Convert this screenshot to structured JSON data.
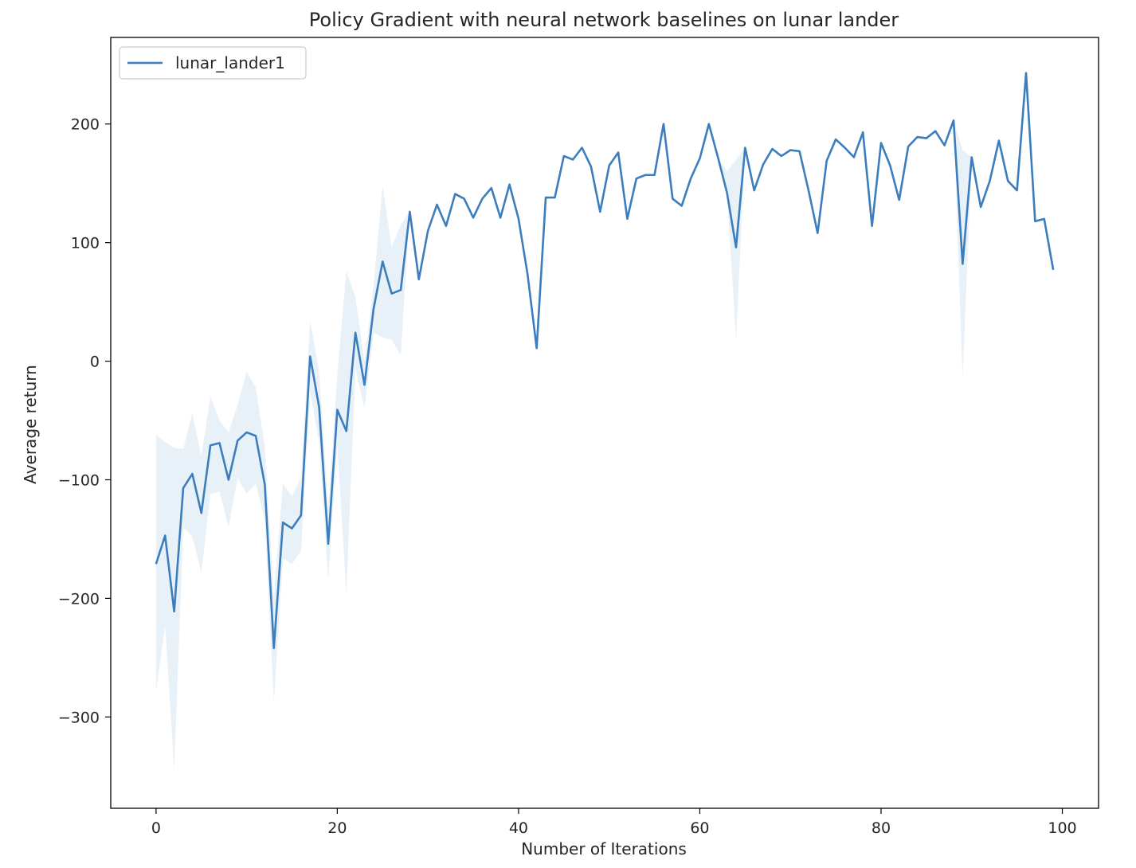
{
  "chart_data": {
    "type": "line",
    "title": "Policy Gradient with neural network baselines on lunar lander",
    "xlabel": "Number of Iterations",
    "ylabel": "Average return",
    "xlim": [
      -5,
      104
    ],
    "ylim": [
      -377,
      273
    ],
    "xticks": [
      0,
      20,
      40,
      60,
      80,
      100
    ],
    "yticks": [
      -300,
      -200,
      -100,
      0,
      100,
      200
    ],
    "xtick_labels": [
      "0",
      "20",
      "40",
      "60",
      "80",
      "100"
    ],
    "ytick_labels": [
      "−300",
      "−200",
      "−100",
      "0",
      "100",
      "200"
    ],
    "grid": false,
    "legend_position": "top-left",
    "series": [
      {
        "name": "lunar_lander1",
        "color": "#3b7dbd",
        "band_color": "#e8f0f8",
        "x": [
          0,
          1,
          2,
          3,
          4,
          5,
          6,
          7,
          8,
          9,
          10,
          11,
          12,
          13,
          14,
          15,
          16,
          17,
          18,
          19,
          20,
          21,
          22,
          23,
          24,
          25,
          26,
          27,
          28,
          29,
          30,
          31,
          32,
          33,
          34,
          35,
          36,
          37,
          38,
          39,
          40,
          41,
          42,
          43,
          44,
          45,
          46,
          47,
          48,
          49,
          50,
          51,
          52,
          53,
          54,
          55,
          56,
          57,
          58,
          59,
          60,
          61,
          62,
          63,
          64,
          65,
          66,
          67,
          68,
          69,
          70,
          71,
          72,
          73,
          74,
          75,
          76,
          77,
          78,
          79,
          80,
          81,
          82,
          83,
          84,
          85,
          86,
          87,
          88,
          89,
          90,
          91,
          92,
          93,
          94,
          95,
          96,
          97,
          98,
          99
        ],
        "y": [
          -171,
          -147,
          -211,
          -107,
          -95,
          -128,
          -71,
          -69,
          -100,
          -67,
          -60,
          -63,
          -104,
          -242,
          -136,
          -141,
          -130,
          4,
          -39,
          -154,
          -41,
          -59,
          24,
          -20,
          44,
          84,
          57,
          60,
          126,
          69,
          110,
          132,
          114,
          141,
          137,
          121,
          137,
          146,
          121,
          149,
          120,
          73,
          11,
          138,
          138,
          173,
          170,
          180,
          164,
          126,
          165,
          176,
          120,
          154,
          157,
          157,
          200,
          137,
          131,
          154,
          171,
          200,
          172,
          142,
          96,
          180,
          144,
          166,
          179,
          173,
          178,
          177,
          144,
          108,
          169,
          187,
          180,
          172,
          193,
          114,
          184,
          165,
          136,
          181,
          189,
          188,
          194,
          182,
          203,
          82,
          172,
          130,
          152,
          186,
          152,
          144,
          243,
          118,
          120,
          77
        ],
        "lower": [
          -278,
          -223,
          -345,
          -140,
          -148,
          -178,
          -112,
          -110,
          -140,
          -98,
          -112,
          -103,
          -134,
          -288,
          -166,
          -171,
          -160,
          -26,
          -69,
          -184,
          -71,
          -196,
          -6,
          -40,
          24,
          20,
          18,
          5,
          126,
          69,
          110,
          132,
          114,
          141,
          137,
          121,
          137,
          146,
          121,
          149,
          120,
          73,
          11,
          138,
          138,
          173,
          170,
          180,
          164,
          126,
          165,
          176,
          120,
          154,
          157,
          157,
          200,
          137,
          131,
          154,
          171,
          200,
          172,
          142,
          18,
          180,
          144,
          166,
          179,
          173,
          178,
          177,
          144,
          108,
          169,
          187,
          180,
          172,
          193,
          114,
          184,
          165,
          136,
          181,
          189,
          188,
          194,
          182,
          203,
          -15,
          172,
          130,
          152,
          186,
          152,
          144,
          243,
          118,
          120,
          77
        ],
        "upper": [
          -62,
          -68,
          -73,
          -74,
          -44,
          -80,
          -30,
          -50,
          -60,
          -37,
          -9,
          -22,
          -72,
          -199,
          -103,
          -114,
          -98,
          34,
          -9,
          -124,
          -11,
          76,
          54,
          0,
          64,
          148,
          96,
          115,
          126,
          69,
          110,
          132,
          114,
          141,
          137,
          121,
          137,
          146,
          121,
          149,
          120,
          73,
          11,
          138,
          138,
          173,
          170,
          180,
          164,
          126,
          165,
          176,
          120,
          154,
          157,
          157,
          200,
          137,
          131,
          154,
          171,
          200,
          172,
          160,
          170,
          180,
          144,
          166,
          179,
          173,
          178,
          177,
          144,
          108,
          169,
          187,
          180,
          172,
          193,
          114,
          184,
          165,
          136,
          181,
          189,
          188,
          194,
          182,
          203,
          178,
          172,
          130,
          152,
          186,
          152,
          144,
          243,
          118,
          120,
          77
        ]
      }
    ]
  }
}
